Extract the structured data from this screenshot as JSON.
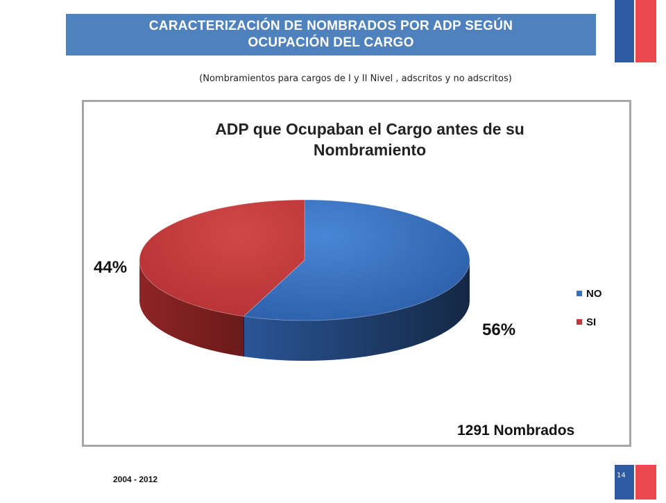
{
  "header": {
    "title_line1": "CARACTERIZACIÓN DE NOMBRADOS POR ADP SEGÚN",
    "title_line2": "OCUPACIÓN DEL CARGO",
    "subtitle": "(Nombramientos para cargos de I y II Nivel , adscritos y no adscritos)"
  },
  "footer": {
    "years": "2004 - 2012",
    "page_number": "14"
  },
  "colors": {
    "banner": "#4f81bd",
    "flag_blue": "#2d5aa0",
    "flag_red": "#e8484e"
  },
  "chart_data": {
    "type": "pie",
    "title_line1": "ADP que Ocupaban el  Cargo antes de su",
    "title_line2": "Nombramiento",
    "categories": [
      "NO",
      "SI"
    ],
    "values": [
      56,
      44
    ],
    "data_labels": [
      "56%",
      "44%"
    ],
    "colors": [
      "#3a6fbd",
      "#c0393b"
    ],
    "legend_position": "right",
    "annotation": "1291 Nombrados"
  }
}
